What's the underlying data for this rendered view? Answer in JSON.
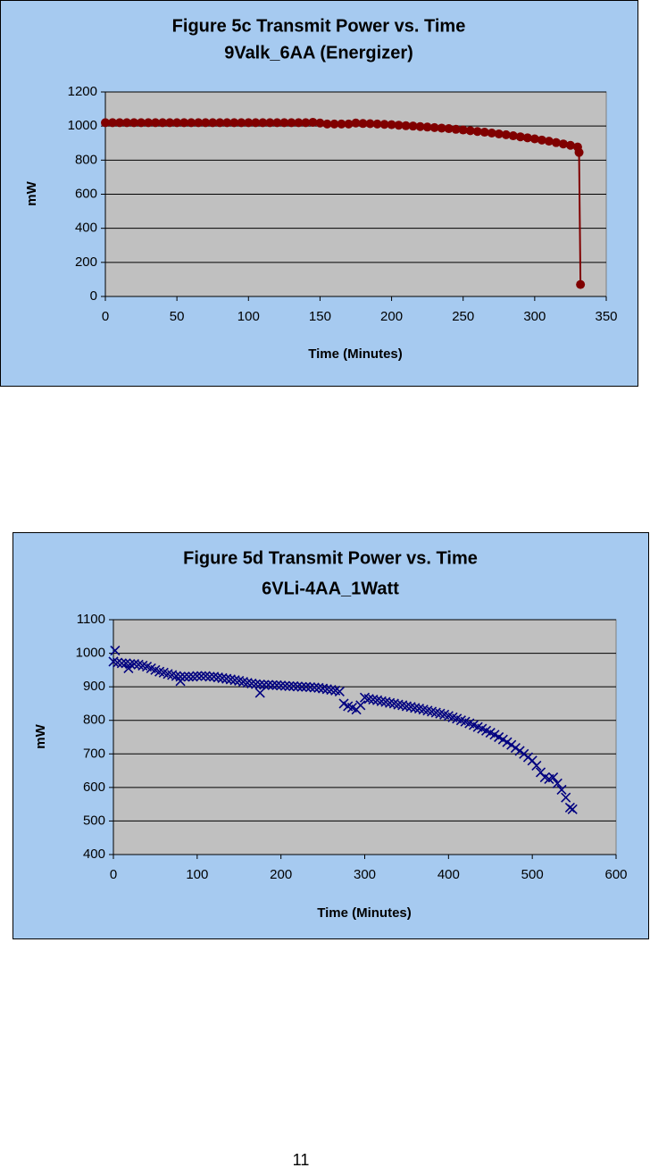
{
  "chart_data": [
    {
      "type": "line",
      "title": [
        "Figure 5c Transmit Power vs. Time",
        "9Valk_6AA (Energizer)"
      ],
      "x_label": "Time (Minutes)",
      "y_label": "mW",
      "xlim": [
        0,
        350
      ],
      "xticks": [
        0,
        50,
        100,
        150,
        200,
        250,
        300,
        350
      ],
      "ylim": [
        0,
        1200
      ],
      "yticks": [
        0,
        200,
        400,
        600,
        800,
        1000,
        1200
      ],
      "grid": true,
      "series": [
        {
          "color": "#800000",
          "marker": "circle",
          "x": [
            0,
            5,
            10,
            15,
            20,
            25,
            30,
            35,
            40,
            45,
            50,
            55,
            60,
            65,
            70,
            75,
            80,
            85,
            90,
            95,
            100,
            105,
            110,
            115,
            120,
            125,
            130,
            135,
            140,
            145,
            150,
            155,
            160,
            165,
            170,
            175,
            180,
            185,
            190,
            195,
            200,
            205,
            210,
            215,
            220,
            225,
            230,
            235,
            240,
            245,
            250,
            255,
            260,
            265,
            270,
            275,
            280,
            285,
            290,
            295,
            300,
            305,
            310,
            315,
            320,
            325,
            330,
            331,
            332
          ],
          "values": [
            1020,
            1020,
            1020,
            1020,
            1020,
            1020,
            1020,
            1020,
            1020,
            1020,
            1020,
            1020,
            1020,
            1020,
            1020,
            1020,
            1020,
            1020,
            1020,
            1020,
            1020,
            1020,
            1020,
            1020,
            1020,
            1020,
            1020,
            1020,
            1020,
            1022,
            1018,
            1012,
            1012,
            1012,
            1012,
            1018,
            1015,
            1014,
            1012,
            1010,
            1008,
            1005,
            1002,
            1000,
            997,
            994,
            991,
            988,
            985,
            981,
            977,
            973,
            968,
            964,
            959,
            954,
            949,
            943,
            937,
            931,
            925,
            918,
            911,
            903,
            895,
            887,
            877,
            845,
            70
          ]
        }
      ]
    },
    {
      "type": "scatter",
      "title": [
        "Figure 5d Transmit Power vs. Time",
        "6VLi-4AA_1Watt"
      ],
      "x_label": "Time (Minutes)",
      "y_label": "mW",
      "xlim": [
        0,
        600
      ],
      "xticks": [
        0,
        100,
        200,
        300,
        400,
        500,
        600
      ],
      "ylim": [
        400,
        1100
      ],
      "yticks": [
        400,
        500,
        600,
        700,
        800,
        900,
        1000,
        1100
      ],
      "grid": true,
      "series": [
        {
          "color": "#000080",
          "marker": "x",
          "x": [
            0,
            5,
            10,
            15,
            20,
            25,
            30,
            35,
            40,
            45,
            50,
            55,
            60,
            65,
            70,
            75,
            80,
            85,
            90,
            95,
            100,
            105,
            110,
            115,
            120,
            125,
            130,
            135,
            140,
            145,
            150,
            155,
            160,
            165,
            170,
            175,
            180,
            185,
            190,
            195,
            200,
            205,
            210,
            215,
            220,
            225,
            230,
            235,
            240,
            245,
            250,
            255,
            260,
            265,
            270,
            275,
            280,
            285,
            290,
            295,
            300,
            305,
            310,
            315,
            320,
            325,
            330,
            335,
            340,
            345,
            350,
            355,
            360,
            365,
            370,
            375,
            380,
            385,
            390,
            395,
            400,
            405,
            410,
            415,
            420,
            425,
            430,
            435,
            440,
            445,
            450,
            455,
            460,
            465,
            470,
            475,
            480,
            485,
            490,
            495,
            500,
            505,
            510,
            515,
            520,
            525,
            530,
            535,
            540,
            545,
            2,
            18,
            80,
            175,
            548
          ],
          "values": [
            975,
            972,
            970,
            970,
            968,
            968,
            966,
            963,
            960,
            955,
            950,
            945,
            942,
            938,
            935,
            932,
            930,
            930,
            930,
            930,
            932,
            932,
            932,
            930,
            930,
            928,
            926,
            924,
            922,
            920,
            918,
            915,
            912,
            910,
            908,
            907,
            906,
            906,
            905,
            905,
            904,
            903,
            902,
            902,
            901,
            900,
            900,
            899,
            898,
            897,
            895,
            893,
            891,
            889,
            886,
            850,
            842,
            838,
            832,
            845,
            868,
            864,
            862,
            860,
            857,
            855,
            852,
            850,
            847,
            845,
            842,
            840,
            837,
            835,
            832,
            829,
            826,
            823,
            820,
            817,
            813,
            809,
            805,
            800,
            796,
            791,
            786,
            780,
            775,
            769,
            763,
            757,
            750,
            743,
            735,
            727,
            718,
            709,
            700,
            690,
            680,
            665,
            645,
            630,
            625,
            630,
            612,
            593,
            570,
            540,
            1008,
            955,
            917,
            882,
            535
          ]
        }
      ]
    }
  ],
  "page_number": "11"
}
